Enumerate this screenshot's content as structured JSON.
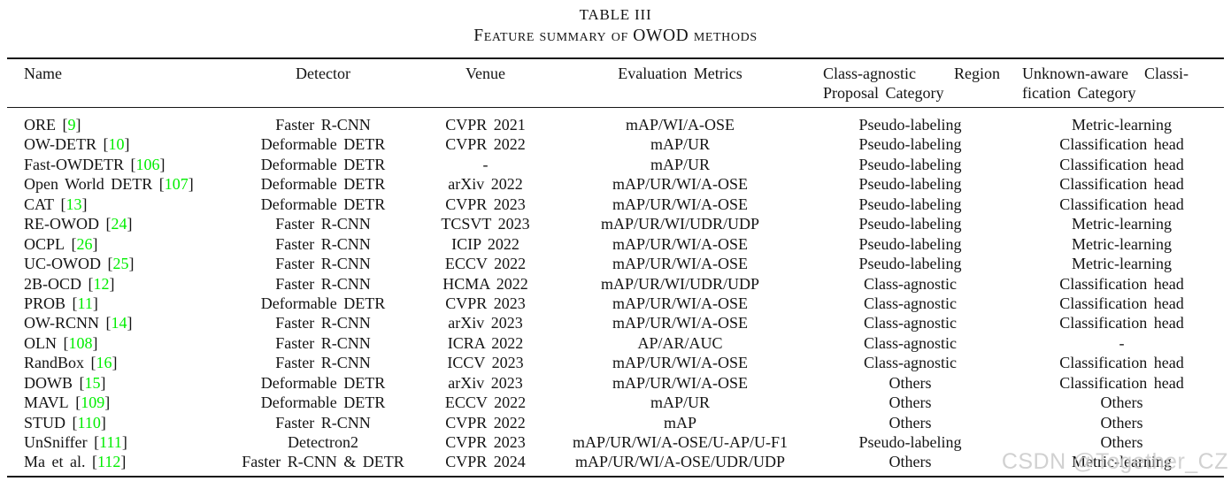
{
  "caption": {
    "number": "TABLE III",
    "title": "Feature summary of OWOD methods"
  },
  "watermark": "CSDN @Together_CZ",
  "colors": {
    "citation_green": "#00ee00",
    "watermark_gray": "#c9c9c9"
  },
  "columns": {
    "name": "Name",
    "detector": "Detector",
    "venue": "Venue",
    "metrics": "Evaluation Metrics",
    "proposal_line1_left": "Class-agnostic",
    "proposal_line1_right": "Region",
    "proposal_line2": "Proposal Category",
    "classification_line1_left": "Unknown-aware",
    "classification_line1_right": "Classi-",
    "classification_line2": "fication Category"
  },
  "rows": [
    {
      "name": "ORE",
      "cite": "9",
      "detector": "Faster R-CNN",
      "venue": "CVPR 2021",
      "metrics": "mAP/WI/A-OSE",
      "proposal": "Pseudo-labeling",
      "classification": "Metric-learning"
    },
    {
      "name": "OW-DETR",
      "cite": "10",
      "detector": "Deformable DETR",
      "venue": "CVPR 2022",
      "metrics": "mAP/UR",
      "proposal": "Pseudo-labeling",
      "classification": "Classification head"
    },
    {
      "name": "Fast-OWDETR",
      "cite": "106",
      "detector": "Deformable DETR",
      "venue": "-",
      "metrics": "mAP/UR",
      "proposal": "Pseudo-labeling",
      "classification": "Classification head"
    },
    {
      "name": "Open World DETR",
      "cite": "107",
      "detector": "Deformable DETR",
      "venue": "arXiv 2022",
      "metrics": "mAP/UR/WI/A-OSE",
      "proposal": "Pseudo-labeling",
      "classification": "Classification head"
    },
    {
      "name": "CAT",
      "cite": "13",
      "detector": "Deformable DETR",
      "venue": "CVPR 2023",
      "metrics": "mAP/UR/WI/A-OSE",
      "proposal": "Pseudo-labeling",
      "classification": "Classification head"
    },
    {
      "name": "RE-OWOD",
      "cite": "24",
      "detector": "Faster R-CNN",
      "venue": "TCSVT 2023",
      "metrics": "mAP/UR/WI/UDR/UDP",
      "proposal": "Pseudo-labeling",
      "classification": "Metric-learning"
    },
    {
      "name": "OCPL",
      "cite": "26",
      "detector": "Faster R-CNN",
      "venue": "ICIP 2022",
      "metrics": "mAP/UR/WI/A-OSE",
      "proposal": "Pseudo-labeling",
      "classification": "Metric-learning"
    },
    {
      "name": "UC-OWOD",
      "cite": "25",
      "detector": "Faster R-CNN",
      "venue": "ECCV 2022",
      "metrics": "mAP/UR/WI/A-OSE",
      "proposal": "Pseudo-labeling",
      "classification": "Metric-learning"
    },
    {
      "name": "2B-OCD",
      "cite": "12",
      "detector": "Faster R-CNN",
      "venue": "HCMA 2022",
      "metrics": "mAP/UR/WI/UDR/UDP",
      "proposal": "Class-agnostic",
      "classification": "Classification head"
    },
    {
      "name": "PROB",
      "cite": "11",
      "detector": "Deformable DETR",
      "venue": "CVPR 2023",
      "metrics": "mAP/UR/WI/A-OSE",
      "proposal": "Class-agnostic",
      "classification": "Classification head"
    },
    {
      "name": "OW-RCNN",
      "cite": "14",
      "detector": "Faster R-CNN",
      "venue": "arXiv 2023",
      "metrics": "mAP/UR/WI/A-OSE",
      "proposal": "Class-agnostic",
      "classification": "Classification head"
    },
    {
      "name": "OLN",
      "cite": "108",
      "detector": "Faster R-CNN",
      "venue": "ICRA 2022",
      "metrics": "AP/AR/AUC",
      "proposal": "Class-agnostic",
      "classification": "-"
    },
    {
      "name": "RandBox",
      "cite": "16",
      "detector": "Faster R-CNN",
      "venue": "ICCV 2023",
      "metrics": "mAP/UR/WI/A-OSE",
      "proposal": "Class-agnostic",
      "classification": "Classification head"
    },
    {
      "name": "DOWB",
      "cite": "15",
      "detector": "Deformable DETR",
      "venue": "arXiv 2023",
      "metrics": "mAP/UR/WI/A-OSE",
      "proposal": "Others",
      "classification": "Classification head"
    },
    {
      "name": "MAVL",
      "cite": "109",
      "detector": "Deformable DETR",
      "venue": "ECCV 2022",
      "metrics": "mAP/UR",
      "proposal": "Others",
      "classification": "Others"
    },
    {
      "name": "STUD",
      "cite": "110",
      "detector": "Faster R-CNN",
      "venue": "CVPR 2022",
      "metrics": "mAP",
      "proposal": "Others",
      "classification": "Others"
    },
    {
      "name": "UnSniffer",
      "cite": "111",
      "detector": "Detectron2",
      "venue": "CVPR 2023",
      "metrics": "mAP/UR/WI/A-OSE/U-AP/U-F1",
      "proposal": "Pseudo-labeling",
      "classification": "Others"
    },
    {
      "name": "Ma et al.",
      "cite": "112",
      "detector": "Faster R-CNN & DETR",
      "venue": "CVPR 2024",
      "metrics": "mAP/UR/WI/A-OSE/UDR/UDP",
      "proposal": "Others",
      "classification": "Metric-learning"
    }
  ]
}
